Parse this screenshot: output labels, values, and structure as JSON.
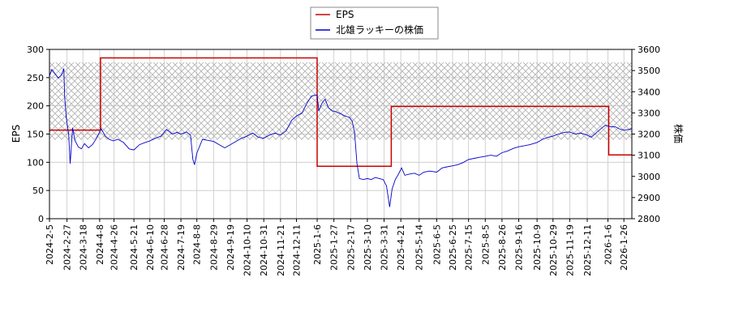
{
  "chart_data": {
    "type": "line",
    "legend": {
      "placement": "top-center",
      "entries": [
        "EPS",
        "北雄ラッキーの株価"
      ]
    },
    "left_axis": {
      "label": "EPS",
      "ylim": [
        0,
        300
      ],
      "ticks": [
        "0",
        "50",
        "100",
        "150",
        "200",
        "250",
        "300"
      ]
    },
    "right_axis": {
      "label": "株価",
      "ylim": [
        2800,
        3600
      ],
      "ticks": [
        "2800",
        "2900",
        "3000",
        "3100",
        "3200",
        "3300",
        "3400",
        "3500",
        "3600"
      ]
    },
    "x_range": [
      "2024-02-05",
      "2026-02-05"
    ],
    "x_tick_labels": [
      "2024-2-5",
      "2024-2-27",
      "2024-3-18",
      "2024-4-8",
      "2024-4-26",
      "2024-5-21",
      "2024-6-10",
      "2024-6-28",
      "2024-7-19",
      "2024-8-8",
      "2024-8-29",
      "2024-9-19",
      "2024-10-10",
      "2024-10-31",
      "2024-11-21",
      "2024-12-11",
      "2025-1-6",
      "2025-1-27",
      "2025-2-17",
      "2025-3-10",
      "2025-3-31",
      "2025-4-21",
      "2025-5-14",
      "2025-6-5",
      "2025-6-25",
      "2025-7-15",
      "2025-8-5",
      "2025-8-26",
      "2025-9-16",
      "2025-10-9",
      "2025-10-29",
      "2025-11-19",
      "2025-12-11",
      "2026-1-6",
      "2026-1-26"
    ],
    "grid": true,
    "band": {
      "axis": "left",
      "range": [
        140,
        277
      ],
      "pattern": "crosshatch"
    },
    "series": [
      {
        "name": "EPS",
        "axis": "left",
        "color": "#cc0000",
        "points": [
          [
            "2024-02-05",
            157
          ],
          [
            "2024-04-09",
            157
          ],
          [
            "2024-04-09",
            285
          ],
          [
            "2025-01-06",
            285
          ],
          [
            "2025-01-06",
            93
          ],
          [
            "2025-04-09",
            93
          ],
          [
            "2025-04-09",
            199
          ],
          [
            "2026-01-07",
            199
          ],
          [
            "2026-01-07",
            113
          ],
          [
            "2026-02-05",
            113
          ]
        ]
      },
      {
        "name": "北雄ラッキーの株価",
        "axis": "right",
        "color": "#0000cc",
        "points": [
          [
            "2024-02-05",
            3475
          ],
          [
            "2024-02-08",
            3505
          ],
          [
            "2024-02-12",
            3485
          ],
          [
            "2024-02-16",
            3465
          ],
          [
            "2024-02-20",
            3478
          ],
          [
            "2024-02-23",
            3510
          ],
          [
            "2024-02-24",
            3380
          ],
          [
            "2024-02-26",
            3280
          ],
          [
            "2024-02-29",
            3200
          ],
          [
            "2024-03-02",
            3060
          ],
          [
            "2024-03-05",
            3230
          ],
          [
            "2024-03-08",
            3170
          ],
          [
            "2024-03-12",
            3140
          ],
          [
            "2024-03-16",
            3130
          ],
          [
            "2024-03-20",
            3155
          ],
          [
            "2024-03-25",
            3135
          ],
          [
            "2024-03-30",
            3150
          ],
          [
            "2024-04-04",
            3180
          ],
          [
            "2024-04-10",
            3225
          ],
          [
            "2024-04-15",
            3190
          ],
          [
            "2024-04-20",
            3175
          ],
          [
            "2024-04-25",
            3168
          ],
          [
            "2024-05-01",
            3175
          ],
          [
            "2024-05-08",
            3160
          ],
          [
            "2024-05-15",
            3130
          ],
          [
            "2024-05-21",
            3125
          ],
          [
            "2024-05-28",
            3150
          ],
          [
            "2024-06-04",
            3160
          ],
          [
            "2024-06-10",
            3168
          ],
          [
            "2024-06-17",
            3180
          ],
          [
            "2024-06-24",
            3190
          ],
          [
            "2024-07-01",
            3222
          ],
          [
            "2024-07-08",
            3200
          ],
          [
            "2024-07-14",
            3208
          ],
          [
            "2024-07-19",
            3200
          ],
          [
            "2024-07-26",
            3210
          ],
          [
            "2024-07-31",
            3195
          ],
          [
            "2024-08-03",
            3080
          ],
          [
            "2024-08-05",
            3055
          ],
          [
            "2024-08-08",
            3110
          ],
          [
            "2024-08-15",
            3175
          ],
          [
            "2024-08-22",
            3170
          ],
          [
            "2024-08-29",
            3165
          ],
          [
            "2024-09-05",
            3150
          ],
          [
            "2024-09-12",
            3135
          ],
          [
            "2024-09-19",
            3150
          ],
          [
            "2024-09-26",
            3165
          ],
          [
            "2024-10-03",
            3180
          ],
          [
            "2024-10-10",
            3190
          ],
          [
            "2024-10-17",
            3205
          ],
          [
            "2024-10-24",
            3185
          ],
          [
            "2024-10-31",
            3180
          ],
          [
            "2024-11-07",
            3195
          ],
          [
            "2024-11-14",
            3205
          ],
          [
            "2024-11-21",
            3195
          ],
          [
            "2024-11-28",
            3215
          ],
          [
            "2024-12-05",
            3265
          ],
          [
            "2024-12-11",
            3285
          ],
          [
            "2024-12-18",
            3300
          ],
          [
            "2024-12-24",
            3345
          ],
          [
            "2024-12-30",
            3380
          ],
          [
            "2025-01-06",
            3385
          ],
          [
            "2025-01-08",
            3310
          ],
          [
            "2025-01-12",
            3345
          ],
          [
            "2025-01-16",
            3365
          ],
          [
            "2025-01-20",
            3325
          ],
          [
            "2025-01-25",
            3310
          ],
          [
            "2025-01-30",
            3305
          ],
          [
            "2025-02-05",
            3295
          ],
          [
            "2025-02-10",
            3285
          ],
          [
            "2025-02-15",
            3280
          ],
          [
            "2025-02-19",
            3262
          ],
          [
            "2025-02-22",
            3205
          ],
          [
            "2025-02-25",
            3060
          ],
          [
            "2025-02-28",
            2990
          ],
          [
            "2025-03-05",
            2985
          ],
          [
            "2025-03-10",
            2990
          ],
          [
            "2025-03-15",
            2985
          ],
          [
            "2025-03-20",
            2995
          ],
          [
            "2025-03-25",
            2990
          ],
          [
            "2025-03-30",
            2985
          ],
          [
            "2025-04-03",
            2955
          ],
          [
            "2025-04-07",
            2855
          ],
          [
            "2025-04-10",
            2940
          ],
          [
            "2025-04-14",
            2985
          ],
          [
            "2025-04-18",
            3010
          ],
          [
            "2025-04-22",
            3040
          ],
          [
            "2025-04-26",
            3005
          ],
          [
            "2025-05-01",
            3010
          ],
          [
            "2025-05-08",
            3015
          ],
          [
            "2025-05-14",
            3005
          ],
          [
            "2025-05-20",
            3020
          ],
          [
            "2025-05-27",
            3025
          ],
          [
            "2025-06-05",
            3020
          ],
          [
            "2025-06-12",
            3040
          ],
          [
            "2025-06-18",
            3045
          ],
          [
            "2025-06-25",
            3050
          ],
          [
            "2025-07-01",
            3055
          ],
          [
            "2025-07-08",
            3065
          ],
          [
            "2025-07-15",
            3080
          ],
          [
            "2025-07-22",
            3085
          ],
          [
            "2025-07-29",
            3090
          ],
          [
            "2025-08-05",
            3095
          ],
          [
            "2025-08-12",
            3100
          ],
          [
            "2025-08-19",
            3095
          ],
          [
            "2025-08-26",
            3112
          ],
          [
            "2025-09-02",
            3120
          ],
          [
            "2025-09-09",
            3132
          ],
          [
            "2025-09-16",
            3140
          ],
          [
            "2025-09-23",
            3145
          ],
          [
            "2025-09-30",
            3150
          ],
          [
            "2025-10-09",
            3160
          ],
          [
            "2025-10-16",
            3175
          ],
          [
            "2025-10-23",
            3185
          ],
          [
            "2025-10-29",
            3190
          ],
          [
            "2025-11-05",
            3200
          ],
          [
            "2025-11-12",
            3208
          ],
          [
            "2025-11-19",
            3210
          ],
          [
            "2025-11-26",
            3200
          ],
          [
            "2025-12-03",
            3205
          ],
          [
            "2025-12-11",
            3195
          ],
          [
            "2025-12-16",
            3185
          ],
          [
            "2025-12-22",
            3205
          ],
          [
            "2025-12-29",
            3228
          ],
          [
            "2026-01-03",
            3242
          ],
          [
            "2026-01-09",
            3235
          ],
          [
            "2026-01-15",
            3235
          ],
          [
            "2026-01-20",
            3225
          ],
          [
            "2026-01-26",
            3218
          ],
          [
            "2026-02-01",
            3222
          ],
          [
            "2026-02-05",
            3225
          ]
        ]
      }
    ]
  }
}
